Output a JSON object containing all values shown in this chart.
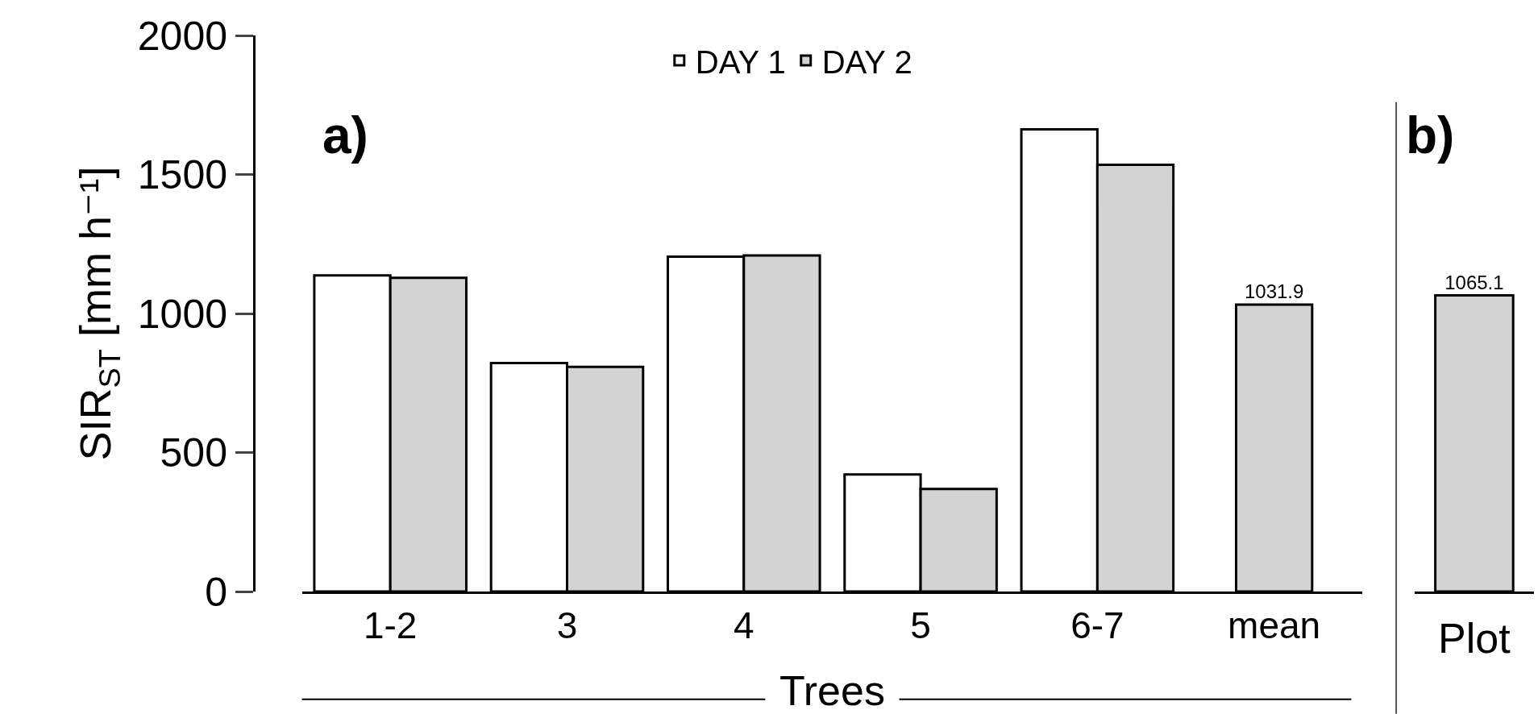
{
  "chart_data": [
    {
      "type": "bar",
      "categories": [
        "1-2",
        "3",
        "4",
        "5",
        "6-7",
        "mean"
      ],
      "xlabel": "Trees",
      "ylabel": "SIR$_{ST}$ [mm h⁻¹]",
      "ylim": [
        0,
        2000
      ],
      "yticks": [
        0,
        500,
        1000,
        1500,
        2000
      ],
      "legend": "top",
      "grid": false,
      "series": [
        {
          "name": "DAY 1",
          "color": "#ffffff",
          "values": [
            1137,
            822,
            1204,
            421,
            1662,
            null
          ]
        },
        {
          "name": "DAY 2",
          "color": "#d3d3d3",
          "values": [
            1128,
            808,
            1209,
            369,
            1535,
            null
          ]
        },
        {
          "color": "#d3d3d3",
          "values": [
            null,
            null,
            null,
            null,
            null,
            1031.9
          ],
          "value_labels": [
            null,
            null,
            null,
            null,
            null,
            "1031.9"
          ]
        }
      ],
      "annotations": [
        "a)"
      ]
    },
    {
      "type": "bar",
      "categories": [
        null
      ],
      "xlabel": "Plot",
      "ylim": [
        0,
        2000
      ],
      "tick_labels": false,
      "data_labels": true,
      "series": [
        {
          "color": "#d3d3d3",
          "values": [
            1065.1
          ]
        }
      ],
      "annotations": [
        "b)"
      ]
    }
  ]
}
